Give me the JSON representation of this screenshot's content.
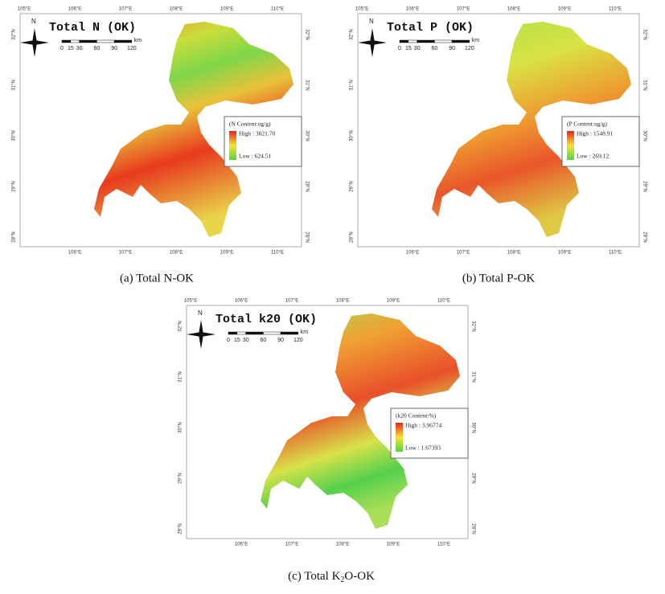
{
  "panels": [
    {
      "title": "Total N (OK)",
      "north": "N",
      "scale": {
        "ticks": [
          "0",
          "15",
          "30",
          "60",
          "90",
          "120"
        ],
        "unit": "km"
      },
      "legend": {
        "title": "(N Content:ug/g)",
        "high": "High : 3021.70",
        "low": "Low : 624.51"
      },
      "top_labels": [
        "105°E",
        "106°E",
        "107°E",
        "108°E",
        "109°E",
        "110°E"
      ],
      "bottom_labels": [
        "106°E",
        "107°E",
        "108°E",
        "109°E",
        "110°E"
      ],
      "left_labels": [
        "32°N",
        "31°N",
        "30°N",
        "29°N",
        "28°N"
      ],
      "right_labels": [
        "32°N",
        "31°N",
        "30°N",
        "29°N",
        "28°N"
      ],
      "caption": "(a) Total N-OK"
    },
    {
      "title": "Total P (OK)",
      "north": "N",
      "scale": {
        "ticks": [
          "0",
          "15",
          "30",
          "60",
          "90",
          "120"
        ],
        "unit": "km"
      },
      "legend": {
        "title": "(P Content:ug/g)",
        "high": "High : 1548.91",
        "low": "Low : 269.12"
      },
      "top_labels": [
        "105°E",
        "106°E",
        "107°E",
        "108°E",
        "109°E",
        "110°E"
      ],
      "bottom_labels": [
        "106°E",
        "107°E",
        "108°E",
        "109°E",
        "110°E"
      ],
      "left_labels": [
        "32°N",
        "31°N",
        "30°N",
        "29°N",
        "28°N"
      ],
      "right_labels": [
        "32°N",
        "31°N",
        "30°N",
        "29°N",
        "28°N"
      ],
      "caption": "(b) Total P-OK"
    },
    {
      "title": "Total k20 (OK)",
      "north": "N",
      "scale": {
        "ticks": [
          "0",
          "15",
          "30",
          "60",
          "90",
          "120"
        ],
        "unit": "km"
      },
      "legend": {
        "title": "(k20 Content:%)",
        "high": "High : 3.96774",
        "low": "Low : 1.67393"
      },
      "top_labels": [
        "105°E",
        "106°E",
        "107°E",
        "108°E",
        "109°E",
        "110°E"
      ],
      "bottom_labels": [
        "106°E",
        "107°E",
        "108°E",
        "109°E",
        "110°E"
      ],
      "left_labels": [
        "32°N",
        "31°N",
        "30°N",
        "29°N",
        "28°N"
      ],
      "right_labels": [
        "32°N",
        "31°N",
        "30°N",
        "29°N",
        "28°N"
      ],
      "caption": {
        "before": "(c) Total K",
        "sub": "2",
        "after": "O-OK"
      }
    }
  ]
}
